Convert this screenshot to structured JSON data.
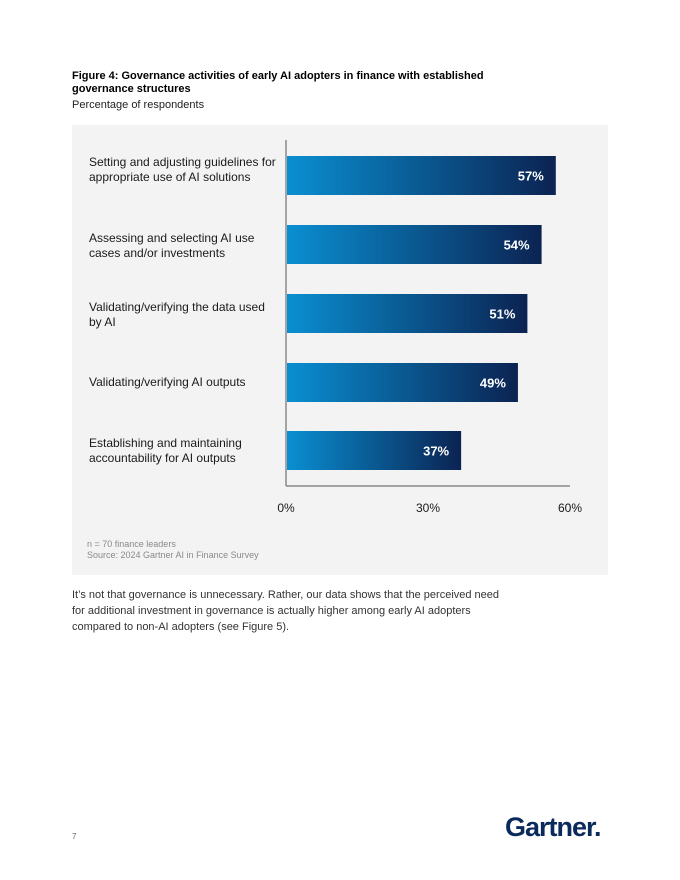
{
  "figure": {
    "title": "Figure 4: Governance activities of early AI adopters in finance with established governance structures",
    "subtitle": "Percentage of respondents"
  },
  "chart_data": {
    "type": "bar",
    "orientation": "horizontal",
    "categories": [
      "Setting and adjusting guidelines for appropriate use of AI solutions",
      "Assessing and selecting AI use cases and/or investments",
      "Validating/verifying the data used by AI",
      "Validating/verifying AI outputs",
      "Establishing and maintaining accountability for AI outputs"
    ],
    "values": [
      57,
      54,
      51,
      49,
      37
    ],
    "value_labels": [
      "57%",
      "54%",
      "51%",
      "49%",
      "37%"
    ],
    "xlim": [
      0,
      60
    ],
    "xticks": [
      "0%",
      "30%",
      "60%"
    ],
    "title": "Figure 4: Governance activities of early AI adopters in finance with established governance structures",
    "ylabel": "",
    "xlabel": "",
    "grid": false,
    "colors": {
      "bar_start": "#0a8fd1",
      "bar_end": "#0b2352"
    }
  },
  "notes": {
    "sample": "n = 70 finance leaders",
    "source": "Source: 2024 Gartner AI in Finance Survey"
  },
  "body_text": "It’s not that governance is unnecessary. Rather, our data shows that the perceived need for additional investment in governance is actually higher among early AI adopters compared to non-AI adopters (see Figure 5).",
  "page_number": "7",
  "logo_text": "Gartner."
}
